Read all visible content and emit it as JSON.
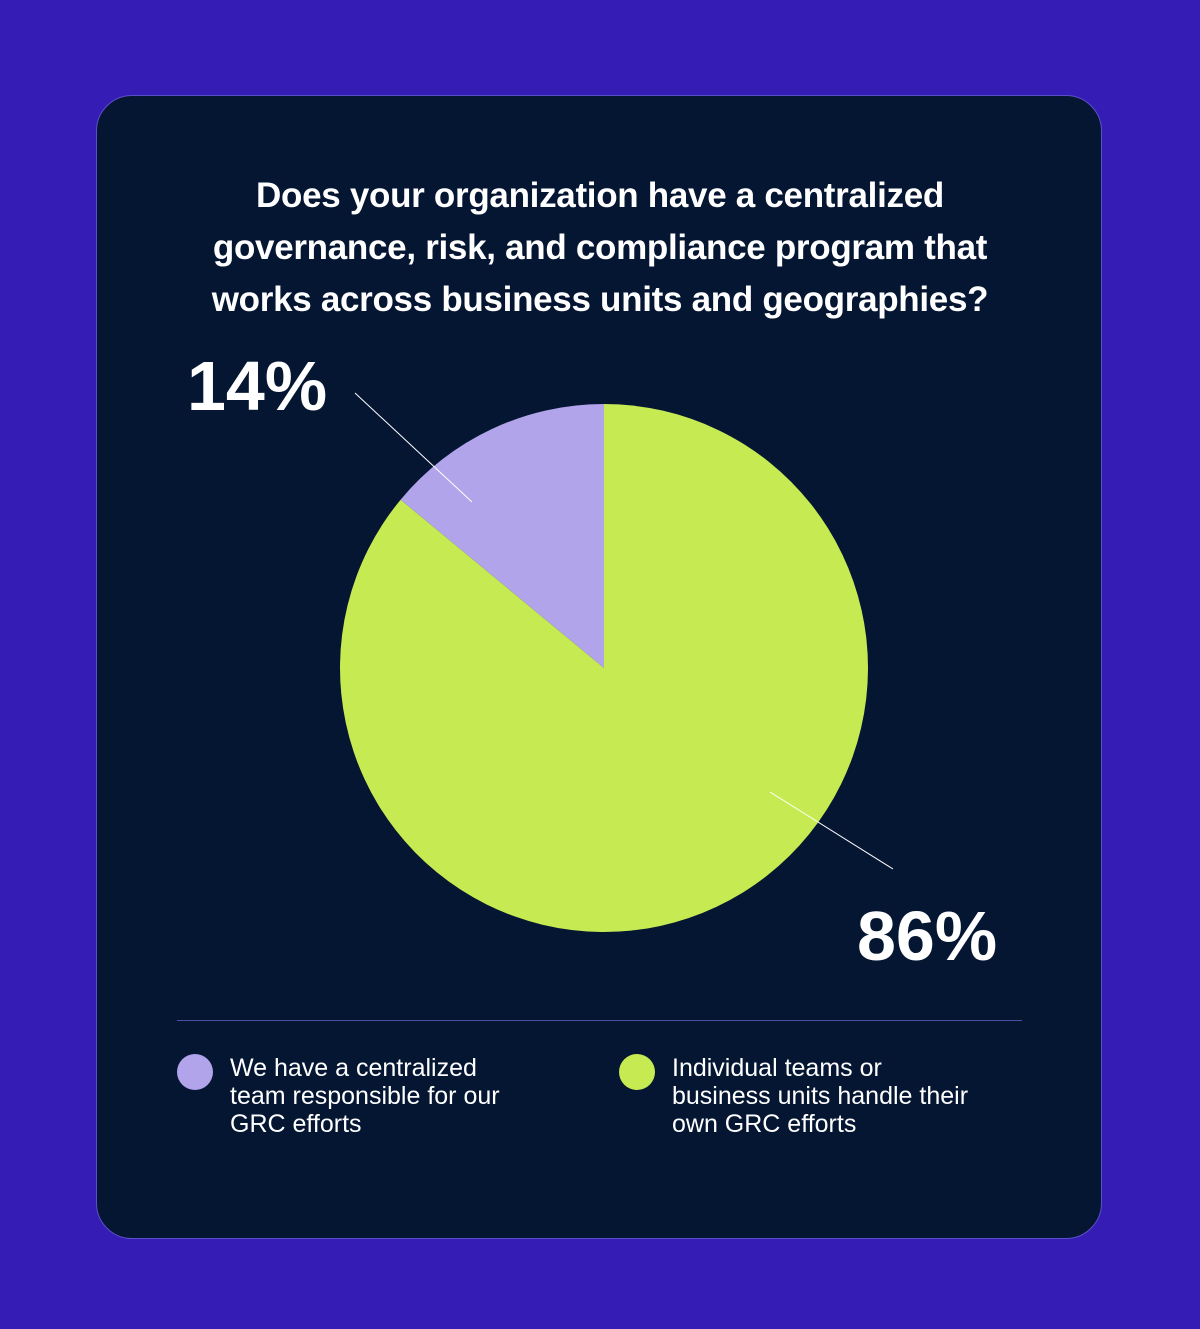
{
  "chart_data": {
    "type": "pie",
    "title_lines": [
      "Does your organization have a centralized",
      "governance, risk, and compliance program that",
      "works across business units and geographies?"
    ],
    "slices": [
      {
        "name": "We have a centralized team responsible for our GRC efforts",
        "legend_lines": [
          "We have a centralized",
          "team responsible for our",
          "GRC efforts"
        ],
        "value": 14,
        "label": "14%",
        "color": "#b1a4ea"
      },
      {
        "name": "Individual teams or business units handle their own GRC efforts",
        "legend_lines": [
          "Individual teams or",
          "business units handle their",
          "own GRC efforts"
        ],
        "value": 86,
        "label": "86%",
        "color": "#c6ea52"
      }
    ],
    "start_angle": "12 o'clock, counter-clockwise for first slice",
    "legend_position": "bottom"
  },
  "colors": {
    "background": "#351cb5",
    "card": "#051633",
    "text": "#ffffff"
  }
}
